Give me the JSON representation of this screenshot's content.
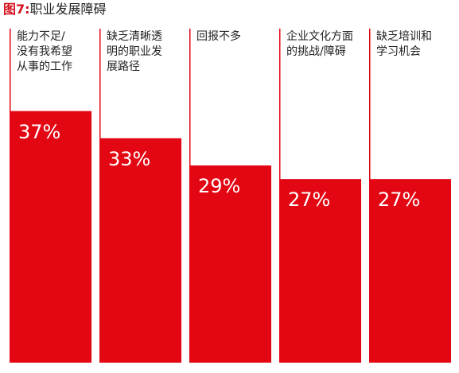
{
  "title": {
    "figure": "图7:",
    "text": "职业发展障碍"
  },
  "colors": {
    "bar": "#e30613",
    "accent": "#d4101d"
  },
  "chart_data": {
    "type": "bar",
    "title": "图7: 职业发展障碍",
    "categories": [
      "能力不足/\n没有我希望\n从事的工作",
      "缺乏清晰透\n明的职业发\n展路径",
      "回报不多",
      "企业文化方面\n的挑战/障碍",
      "缺乏培训和\n学习机会"
    ],
    "values": [
      37,
      33,
      29,
      27,
      27
    ],
    "value_labels": [
      "37%",
      "33%",
      "29%",
      "27%",
      "27%"
    ],
    "ylim": [
      0,
      45
    ],
    "grid": false,
    "legend": "none",
    "xlabel": "",
    "ylabel": ""
  }
}
